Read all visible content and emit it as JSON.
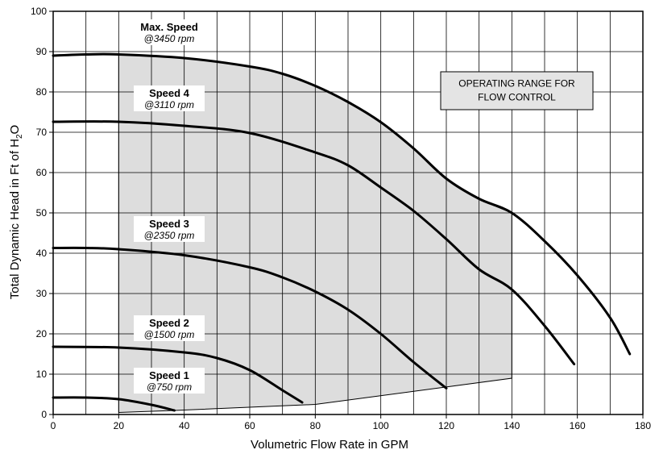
{
  "chart_data": {
    "type": "line",
    "xlabel": "Volumetric Flow Rate in GPM",
    "ylabel_parts": [
      "Total Dynamic Head in Ft of H",
      "2",
      "O"
    ],
    "xlim": [
      0,
      180
    ],
    "ylim": [
      0,
      100
    ],
    "x_ticks": [
      0,
      20,
      40,
      60,
      80,
      100,
      120,
      140,
      160,
      180
    ],
    "y_ticks": [
      0,
      10,
      20,
      30,
      40,
      50,
      60,
      70,
      80,
      90,
      100
    ],
    "x_grid_step": 10,
    "y_grid_step": 10,
    "grid": true,
    "series": [
      {
        "name": "Max. Speed",
        "rpm_label": "@3450 rpm",
        "points": [
          [
            0,
            89
          ],
          [
            10,
            89.3
          ],
          [
            20,
            89.3
          ],
          [
            40,
            88.4
          ],
          [
            60,
            86.3
          ],
          [
            70,
            84.5
          ],
          [
            80,
            81.5
          ],
          [
            90,
            77.5
          ],
          [
            100,
            72.5
          ],
          [
            110,
            66
          ],
          [
            120,
            58.5
          ],
          [
            130,
            53.5
          ],
          [
            140,
            50
          ],
          [
            150,
            43
          ],
          [
            160,
            34.5
          ],
          [
            170,
            24
          ],
          [
            176,
            15
          ]
        ]
      },
      {
        "name": "Speed 4",
        "rpm_label": "@3110 rpm",
        "points": [
          [
            0,
            72.6
          ],
          [
            20,
            72.6
          ],
          [
            40,
            71.6
          ],
          [
            60,
            69.8
          ],
          [
            80,
            65
          ],
          [
            90,
            61.8
          ],
          [
            100,
            56.3
          ],
          [
            110,
            50.5
          ],
          [
            120,
            43.5
          ],
          [
            130,
            36
          ],
          [
            140,
            31
          ],
          [
            150,
            22
          ],
          [
            159,
            12.5
          ]
        ]
      },
      {
        "name": "Speed 3",
        "rpm_label": "@2350 rpm",
        "points": [
          [
            0,
            41.3
          ],
          [
            10,
            41.3
          ],
          [
            20,
            41
          ],
          [
            40,
            39.5
          ],
          [
            60,
            36.5
          ],
          [
            70,
            34
          ],
          [
            80,
            30.5
          ],
          [
            90,
            26
          ],
          [
            100,
            20
          ],
          [
            110,
            13
          ],
          [
            120,
            6.5
          ]
        ]
      },
      {
        "name": "Speed 2",
        "rpm_label": "@1500 rpm",
        "points": [
          [
            0,
            16.8
          ],
          [
            20,
            16.6
          ],
          [
            40,
            15.4
          ],
          [
            50,
            14
          ],
          [
            60,
            11
          ],
          [
            70,
            6
          ],
          [
            76,
            3
          ]
        ]
      },
      {
        "name": "Speed 1",
        "rpm_label": "@750 rpm",
        "points": [
          [
            0,
            4.2
          ],
          [
            10,
            4.2
          ],
          [
            20,
            3.8
          ],
          [
            30,
            2.4
          ],
          [
            37,
            1
          ]
        ]
      }
    ],
    "operating_region": {
      "label_lines": [
        "OPERATING RANGE FOR",
        "FLOW CONTROL"
      ],
      "polygon": [
        [
          20,
          0.5
        ],
        [
          20,
          89.3
        ],
        [
          40,
          88.4
        ],
        [
          60,
          86.3
        ],
        [
          70,
          84.5
        ],
        [
          80,
          81.5
        ],
        [
          90,
          77.5
        ],
        [
          100,
          72.5
        ],
        [
          110,
          66
        ],
        [
          120,
          58.5
        ],
        [
          130,
          53.5
        ],
        [
          140,
          50
        ],
        [
          140,
          9
        ],
        [
          80,
          2.5
        ],
        [
          37,
          1
        ]
      ],
      "fill": "#dddddd"
    },
    "colors": {
      "curves": "#000000",
      "grid": "#000000",
      "operating_fill": "#dddddd",
      "background": "#ffffff"
    }
  }
}
